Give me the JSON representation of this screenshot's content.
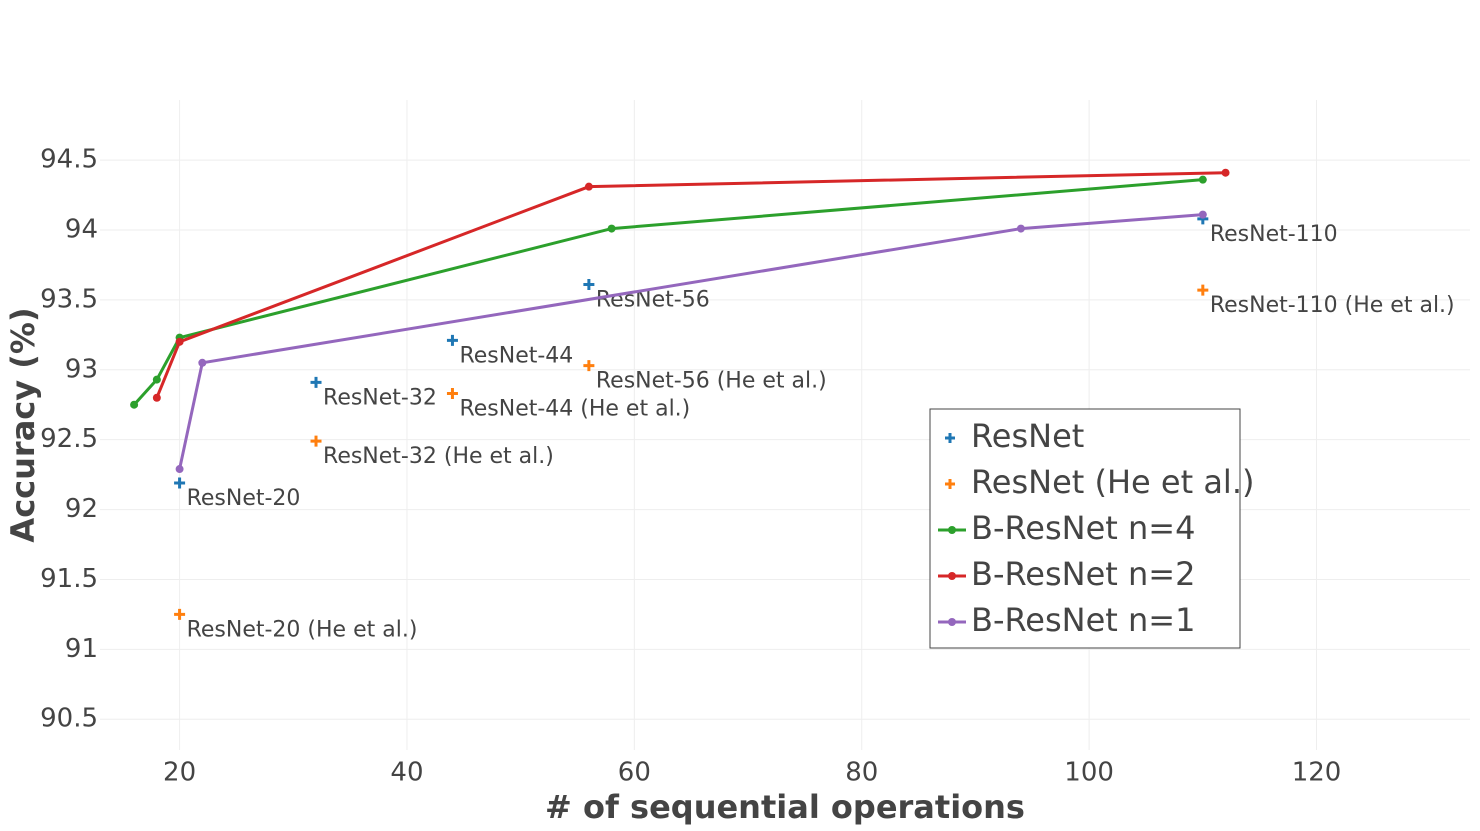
{
  "chart_data": {
    "type": "scatter",
    "x_label": "# of sequential operations",
    "y_label": "Accuracy (%)",
    "xlim": [
      13,
      133.5
    ],
    "ylim": [
      90.28,
      94.93
    ],
    "xticks": [
      20,
      40,
      60,
      80,
      100,
      120
    ],
    "yticks": [
      90.5,
      91,
      91.5,
      92,
      92.5,
      93,
      93.5,
      94,
      94.5
    ],
    "grid": true,
    "legend": "right",
    "series": [
      {
        "name": "ResNet",
        "color": "#1f77b4",
        "mode": "markers",
        "x": [
          20,
          32,
          44,
          56,
          110
        ],
        "values": [
          92.19,
          92.91,
          93.21,
          93.61,
          94.08
        ],
        "text": [
          "ResNet-20",
          "ResNet-32",
          "ResNet-44",
          "ResNet-56",
          "ResNet-110"
        ]
      },
      {
        "name": "ResNet (He et al.)",
        "color": "#ff7f0e",
        "mode": "markers",
        "x": [
          20,
          32,
          44,
          56,
          110
        ],
        "values": [
          91.25,
          92.49,
          92.83,
          93.03,
          93.57
        ],
        "text": [
          "ResNet-20 (He et al.)",
          "ResNet-32 (He et al.)",
          "ResNet-44 (He et al.)",
          "ResNet-56 (He et al.)",
          "ResNet-110 (He et al.)"
        ]
      },
      {
        "name": "B-ResNet n=4",
        "color": "#2ca02c",
        "mode": "lines+markers",
        "x": [
          16,
          18,
          20,
          58,
          110
        ],
        "values": [
          92.75,
          92.93,
          93.23,
          94.01,
          94.36
        ]
      },
      {
        "name": "B-ResNet n=2",
        "color": "#d62728",
        "mode": "lines+markers",
        "x": [
          18,
          20,
          56,
          112
        ],
        "values": [
          92.8,
          93.2,
          94.31,
          94.41
        ]
      },
      {
        "name": "B-ResNet n=1",
        "color": "#9467bd",
        "mode": "lines+markers",
        "x": [
          20,
          22,
          94,
          110
        ],
        "values": [
          92.29,
          93.05,
          94.01,
          94.11
        ]
      }
    ]
  }
}
